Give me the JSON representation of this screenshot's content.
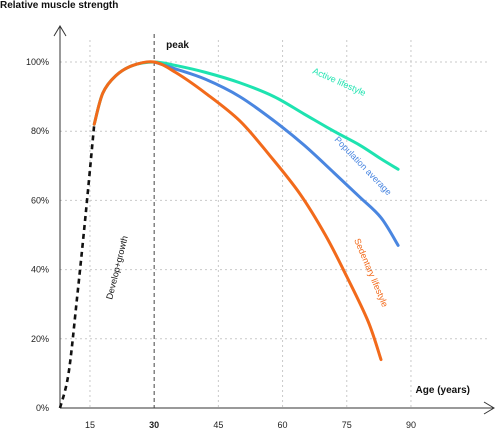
{
  "chart_data": {
    "type": "line",
    "ylabel": "Relative muscle strength",
    "xlabel": "Age (years)",
    "xlim": [
      8,
      108
    ],
    "ylim": [
      0,
      100
    ],
    "x_ticks": [
      {
        "value": 15,
        "label": "15"
      },
      {
        "value": 30,
        "label": "30",
        "bold": true
      },
      {
        "value": 45,
        "label": "45"
      },
      {
        "value": 60,
        "label": "60"
      },
      {
        "value": 75,
        "label": "75"
      },
      {
        "value": 90,
        "label": "90"
      }
    ],
    "y_ticks": [
      {
        "value": 0,
        "label": "0%"
      },
      {
        "value": 20,
        "label": "20%"
      },
      {
        "value": 40,
        "label": "40%"
      },
      {
        "value": 60,
        "label": "60%"
      },
      {
        "value": 80,
        "label": "80%"
      },
      {
        "value": 100,
        "label": "100%"
      }
    ],
    "grid": true,
    "peak": {
      "x": 30,
      "label": "peak"
    },
    "series": [
      {
        "name": "Develop+growth",
        "color": "#111111",
        "dashed": true,
        "points": [
          [
            8,
            0
          ],
          [
            10,
            10
          ],
          [
            12,
            32
          ],
          [
            14,
            56
          ],
          [
            16,
            82
          ]
        ]
      },
      {
        "name": "Active lifestyle",
        "color": "#1ee3b0",
        "points": [
          [
            16,
            82
          ],
          [
            18,
            91
          ],
          [
            21,
            96
          ],
          [
            25,
            99
          ],
          [
            30,
            100
          ],
          [
            35,
            99
          ],
          [
            42,
            97
          ],
          [
            50,
            94
          ],
          [
            58,
            90
          ],
          [
            65,
            85
          ],
          [
            72,
            80
          ],
          [
            78,
            76
          ],
          [
            83,
            72
          ],
          [
            87,
            69
          ]
        ]
      },
      {
        "name": "Population average",
        "color": "#4a86e0",
        "points": [
          [
            30,
            100
          ],
          [
            35,
            98
          ],
          [
            42,
            95
          ],
          [
            50,
            90
          ],
          [
            58,
            83
          ],
          [
            65,
            76
          ],
          [
            72,
            68
          ],
          [
            78,
            61
          ],
          [
            83,
            55
          ],
          [
            87,
            47
          ]
        ]
      },
      {
        "name": "Sedentary lifestyle",
        "color": "#f26a1b",
        "points": [
          [
            16,
            82
          ],
          [
            18,
            91
          ],
          [
            21,
            96
          ],
          [
            25,
            99
          ],
          [
            30,
            100
          ],
          [
            35,
            97
          ],
          [
            42,
            91
          ],
          [
            50,
            83
          ],
          [
            57,
            73
          ],
          [
            64,
            62
          ],
          [
            70,
            50
          ],
          [
            75,
            38
          ],
          [
            80,
            25
          ],
          [
            83,
            14
          ]
        ]
      }
    ],
    "annotations": [
      {
        "text": "Develop+growth",
        "series": 0
      },
      {
        "text": "Active lifestyle",
        "series": 1
      },
      {
        "text": "Population average",
        "series": 2
      },
      {
        "text": "Sedentary lifestyle",
        "series": 3
      }
    ]
  }
}
